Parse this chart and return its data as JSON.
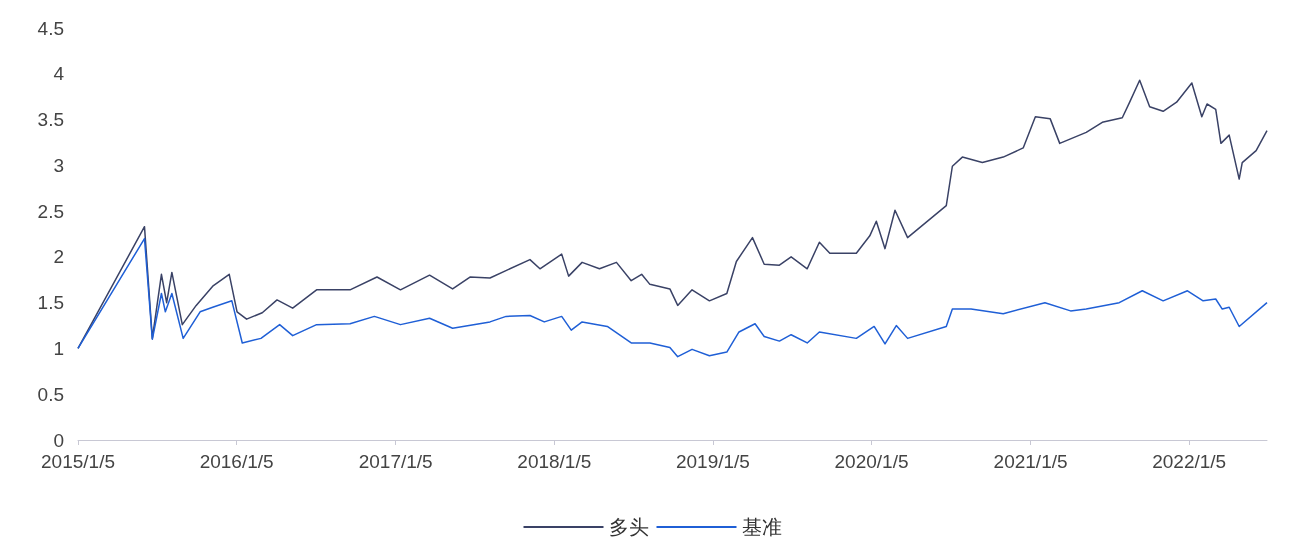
{
  "chart_data": {
    "type": "line",
    "marker": "none",
    "legend": "bottom",
    "xlim": [
      "2015-01-05",
      "2022-07-03"
    ],
    "xticks": [
      {
        "value": "2015-01-05",
        "label": "2015/1/5"
      },
      {
        "value": "2016-01-05",
        "label": "2016/1/5"
      },
      {
        "value": "2017-01-05",
        "label": "2017/1/5"
      },
      {
        "value": "2018-01-05",
        "label": "2018/1/5"
      },
      {
        "value": "2019-01-05",
        "label": "2019/1/5"
      },
      {
        "value": "2020-01-05",
        "label": "2020/1/5"
      },
      {
        "value": "2021-01-05",
        "label": "2021/1/5"
      },
      {
        "value": "2022-01-05",
        "label": "2022/1/5"
      }
    ],
    "ylim": [
      0,
      4.5
    ],
    "yticks": [
      0,
      0.5,
      1,
      1.5,
      2,
      2.5,
      3,
      3.5,
      4,
      4.5
    ],
    "series": [
      {
        "name": "多头",
        "color": "#3a4266",
        "x": [
          "2015-01-05",
          "2015-06-07",
          "2015-06-25",
          "2015-07-16",
          "2015-07-28",
          "2015-08-09",
          "2015-09-02",
          "2015-10-04",
          "2015-11-11",
          "2015-12-19",
          "2016-01-06",
          "2016-01-28",
          "2016-03-04",
          "2016-04-07",
          "2016-05-13",
          "2016-07-07",
          "2016-09-22",
          "2016-11-23",
          "2017-01-16",
          "2017-03-24",
          "2017-05-16",
          "2017-06-25",
          "2017-08-10",
          "2017-11-10",
          "2017-12-03",
          "2018-01-22",
          "2018-02-07",
          "2018-03-10",
          "2018-04-19",
          "2018-05-28",
          "2018-07-01",
          "2018-07-25",
          "2018-08-13",
          "2018-09-28",
          "2018-10-16",
          "2018-11-18",
          "2018-12-28",
          "2019-02-06",
          "2019-02-28",
          "2019-04-06",
          "2019-05-03",
          "2019-06-07",
          "2019-07-04",
          "2019-08-10",
          "2019-09-07",
          "2019-10-01",
          "2019-12-01",
          "2020-01-01",
          "2020-01-16",
          "2020-02-05",
          "2020-02-28",
          "2020-03-28",
          "2020-06-25",
          "2020-07-09",
          "2020-08-01",
          "2020-09-16",
          "2020-11-03",
          "2020-12-19",
          "2021-01-16",
          "2021-02-19",
          "2021-03-13",
          "2021-05-13",
          "2021-06-19",
          "2021-08-04",
          "2021-08-21",
          "2021-09-13",
          "2021-10-06",
          "2021-11-06",
          "2021-12-07",
          "2022-01-11",
          "2022-02-03",
          "2022-02-15",
          "2022-03-07",
          "2022-03-19",
          "2022-04-07",
          "2022-04-30",
          "2022-05-07",
          "2022-06-08",
          "2022-07-03"
        ],
        "values": [
          1.0,
          2.33,
          1.11,
          1.81,
          1.5,
          1.83,
          1.26,
          1.47,
          1.68,
          1.81,
          1.4,
          1.32,
          1.39,
          1.53,
          1.44,
          1.64,
          1.64,
          1.78,
          1.64,
          1.8,
          1.65,
          1.78,
          1.77,
          1.97,
          1.87,
          2.03,
          1.79,
          1.94,
          1.87,
          1.94,
          1.74,
          1.81,
          1.7,
          1.65,
          1.47,
          1.64,
          1.52,
          1.6,
          1.95,
          2.21,
          1.92,
          1.91,
          2.0,
          1.87,
          2.16,
          2.04,
          2.04,
          2.23,
          2.39,
          2.09,
          2.51,
          2.21,
          2.56,
          2.99,
          3.09,
          3.03,
          3.09,
          3.19,
          3.53,
          3.51,
          3.24,
          3.36,
          3.47,
          3.52,
          3.69,
          3.93,
          3.64,
          3.59,
          3.69,
          3.9,
          3.53,
          3.67,
          3.61,
          3.24,
          3.33,
          2.85,
          3.03,
          3.16,
          3.38
        ]
      },
      {
        "name": "基准",
        "color": "#1f5fd6",
        "x": [
          "2015-01-05",
          "2015-06-07",
          "2015-06-25",
          "2015-07-16",
          "2015-07-25",
          "2015-08-09",
          "2015-09-04",
          "2015-10-13",
          "2015-11-11",
          "2015-12-25",
          "2016-01-18",
          "2016-03-01",
          "2016-04-13",
          "2016-05-13",
          "2016-07-07",
          "2016-09-22",
          "2016-11-17",
          "2017-01-16",
          "2017-03-24",
          "2017-05-16",
          "2017-08-10",
          "2017-09-16",
          "2017-11-10",
          "2017-12-13",
          "2018-01-22",
          "2018-02-13",
          "2018-03-10",
          "2018-05-07",
          "2018-07-01",
          "2018-08-13",
          "2018-09-28",
          "2018-10-16",
          "2018-11-18",
          "2018-12-28",
          "2019-02-06",
          "2019-03-06",
          "2019-04-12",
          "2019-05-03",
          "2019-06-07",
          "2019-07-04",
          "2019-08-10",
          "2019-09-07",
          "2019-12-01",
          "2020-01-11",
          "2020-02-05",
          "2020-03-02",
          "2020-03-28",
          "2020-06-25",
          "2020-07-09",
          "2020-08-21",
          "2020-11-03",
          "2021-02-07",
          "2021-04-07",
          "2021-05-13",
          "2021-07-28",
          "2021-09-19",
          "2021-11-06",
          "2022-01-01",
          "2022-02-06",
          "2022-03-07",
          "2022-03-22",
          "2022-04-07",
          "2022-04-30",
          "2022-07-03"
        ],
        "values": [
          1.0,
          2.2,
          1.1,
          1.6,
          1.4,
          1.6,
          1.11,
          1.4,
          1.45,
          1.52,
          1.06,
          1.11,
          1.26,
          1.14,
          1.26,
          1.27,
          1.35,
          1.26,
          1.33,
          1.22,
          1.29,
          1.35,
          1.36,
          1.29,
          1.35,
          1.2,
          1.29,
          1.24,
          1.06,
          1.06,
          1.01,
          0.91,
          0.99,
          0.92,
          0.96,
          1.18,
          1.27,
          1.13,
          1.08,
          1.15,
          1.06,
          1.18,
          1.11,
          1.24,
          1.05,
          1.25,
          1.11,
          1.24,
          1.43,
          1.43,
          1.38,
          1.5,
          1.41,
          1.43,
          1.5,
          1.63,
          1.52,
          1.63,
          1.52,
          1.54,
          1.43,
          1.45,
          1.24,
          1.5
        ]
      }
    ]
  }
}
